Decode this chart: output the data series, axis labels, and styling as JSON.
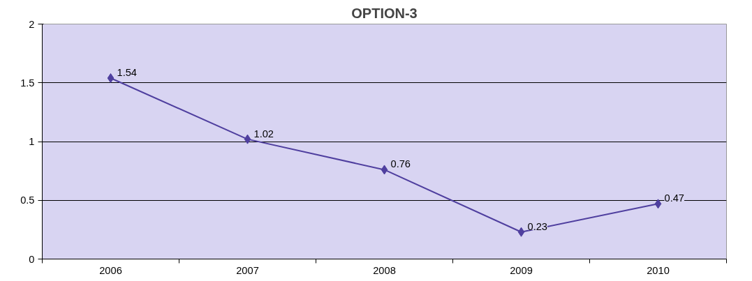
{
  "chart_data": {
    "type": "line",
    "title": "OPTION-3",
    "categories": [
      "2006",
      "2007",
      "2008",
      "2009",
      "2010"
    ],
    "series": [
      {
        "color": "#4f3f9f",
        "values": [
          1.54,
          1.02,
          0.76,
          0.23,
          0.47
        ]
      }
    ],
    "ylim": [
      0,
      2
    ],
    "yticks": [
      0,
      0.5,
      1,
      1.5,
      2
    ],
    "grid": "y",
    "marker": "diamond",
    "line_style": "solid",
    "data_labels": true
  }
}
